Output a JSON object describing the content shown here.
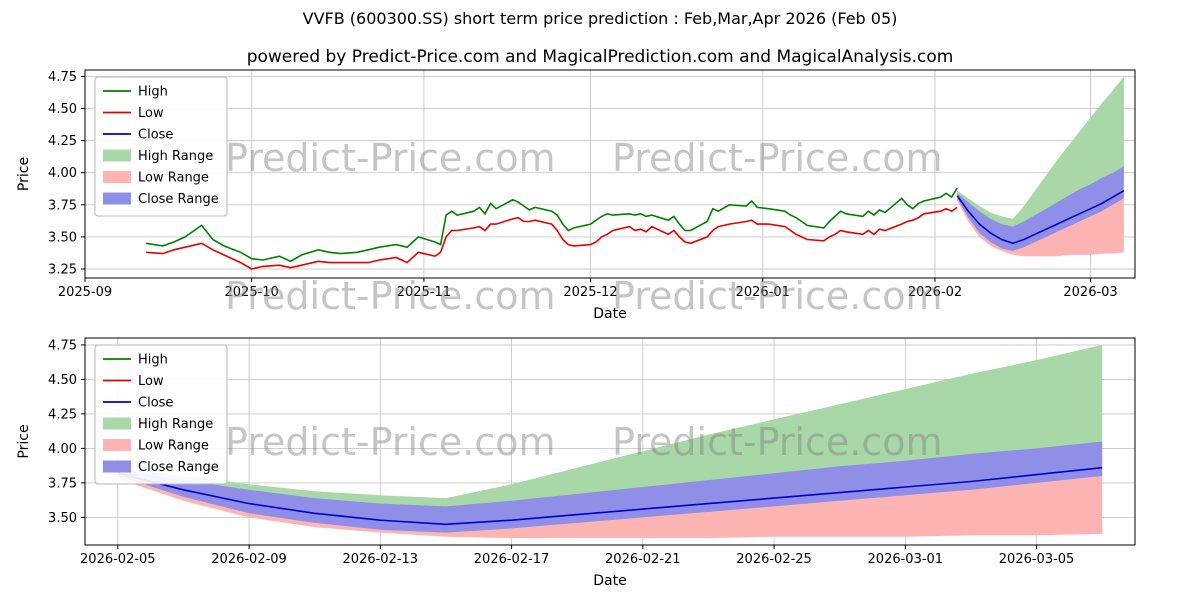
{
  "title": "VVFB (600300.SS) short term price prediction : Feb,Mar,Apr 2026 (Feb 05)",
  "subtitle": "powered by Predict-Price.com and MagicalPrediction.com and MagicalAnalysis.com",
  "watermark": "Predict-Price.com",
  "colors": {
    "high": "#008000",
    "low": "#e60000",
    "close": "#0000cd",
    "high_range": "#a8d8a8",
    "low_range": "#ffb4b4",
    "close_range": "#8f8fe8",
    "grid": "#c9c9c9",
    "spine": "#000000",
    "watermark": "#808080"
  },
  "chart_data": [
    {
      "type": "line",
      "name": "history-with-prediction",
      "xlabel": "Date",
      "ylabel": "Price",
      "xlim": [
        "2025-09-01",
        "2026-03-09"
      ],
      "ylim": [
        3.18,
        4.8
      ],
      "grid": true,
      "legend_position": "upper left",
      "xticks": [
        {
          "value": "2025-09-01",
          "label": "2025-09"
        },
        {
          "value": "2025-10-01",
          "label": "2025-10"
        },
        {
          "value": "2025-11-01",
          "label": "2025-11"
        },
        {
          "value": "2025-12-01",
          "label": "2025-12"
        },
        {
          "value": "2026-01-01",
          "label": "2026-01"
        },
        {
          "value": "2026-02-01",
          "label": "2026-02"
        },
        {
          "value": "2026-03-01",
          "label": "2026-03"
        }
      ],
      "yticks": [
        3.25,
        3.5,
        3.75,
        4.0,
        4.25,
        4.5,
        4.75
      ],
      "ytick_labels": [
        "3.25",
        "3.50",
        "3.75",
        "4.00",
        "4.25",
        "4.50",
        "4.75"
      ],
      "legend": [
        {
          "label": "High",
          "swatch": "line",
          "color_key": "high"
        },
        {
          "label": "Low",
          "swatch": "line",
          "color_key": "low"
        },
        {
          "label": "Close",
          "swatch": "line",
          "color_key": "close"
        },
        {
          "label": "High Range",
          "swatch": "patch",
          "color_key": "high_range"
        },
        {
          "label": "Low Range",
          "swatch": "patch",
          "color_key": "low_range"
        },
        {
          "label": "Close Range",
          "swatch": "patch",
          "color_key": "close_range"
        }
      ],
      "series": {
        "history": {
          "dates": [
            "2025-09-12",
            "2025-09-15",
            "2025-09-17",
            "2025-09-19",
            "2025-09-22",
            "2025-09-24",
            "2025-09-26",
            "2025-09-29",
            "2025-10-01",
            "2025-10-03",
            "2025-10-06",
            "2025-10-08",
            "2025-10-10",
            "2025-10-13",
            "2025-10-15",
            "2025-10-17",
            "2025-10-20",
            "2025-10-22",
            "2025-10-24",
            "2025-10-27",
            "2025-10-29",
            "2025-10-31",
            "2025-11-03",
            "2025-11-04",
            "2025-11-05",
            "2025-11-06",
            "2025-11-07",
            "2025-11-10",
            "2025-11-11",
            "2025-11-12",
            "2025-11-13",
            "2025-11-14",
            "2025-11-17",
            "2025-11-18",
            "2025-11-19",
            "2025-11-20",
            "2025-11-21",
            "2025-11-24",
            "2025-11-25",
            "2025-11-26",
            "2025-11-27",
            "2025-11-28",
            "2025-12-01",
            "2025-12-02",
            "2025-12-03",
            "2025-12-04",
            "2025-12-05",
            "2025-12-08",
            "2025-12-09",
            "2025-12-10",
            "2025-12-11",
            "2025-12-12",
            "2025-12-15",
            "2025-12-16",
            "2025-12-17",
            "2025-12-18",
            "2025-12-19",
            "2025-12-22",
            "2025-12-23",
            "2025-12-24",
            "2025-12-26",
            "2025-12-29",
            "2025-12-30",
            "2025-12-31",
            "2026-01-02",
            "2026-01-05",
            "2026-01-06",
            "2026-01-07",
            "2026-01-08",
            "2026-01-09",
            "2026-01-12",
            "2026-01-13",
            "2026-01-14",
            "2026-01-15",
            "2026-01-16",
            "2026-01-19",
            "2026-01-20",
            "2026-01-21",
            "2026-01-22",
            "2026-01-23",
            "2026-01-26",
            "2026-01-27",
            "2026-01-28",
            "2026-01-29",
            "2026-01-30",
            "2026-02-02",
            "2026-02-03",
            "2026-02-04",
            "2026-02-05"
          ],
          "high": [
            3.45,
            3.43,
            3.46,
            3.5,
            3.59,
            3.48,
            3.43,
            3.38,
            3.33,
            3.32,
            3.35,
            3.31,
            3.36,
            3.4,
            3.38,
            3.37,
            3.38,
            3.4,
            3.42,
            3.44,
            3.42,
            3.5,
            3.46,
            3.44,
            3.67,
            3.7,
            3.67,
            3.7,
            3.73,
            3.68,
            3.76,
            3.72,
            3.79,
            3.77,
            3.74,
            3.71,
            3.73,
            3.7,
            3.67,
            3.6,
            3.55,
            3.57,
            3.6,
            3.63,
            3.66,
            3.68,
            3.67,
            3.68,
            3.67,
            3.68,
            3.66,
            3.67,
            3.63,
            3.66,
            3.6,
            3.55,
            3.55,
            3.62,
            3.72,
            3.7,
            3.75,
            3.74,
            3.78,
            3.73,
            3.72,
            3.7,
            3.67,
            3.65,
            3.62,
            3.59,
            3.57,
            3.62,
            3.66,
            3.7,
            3.68,
            3.66,
            3.7,
            3.67,
            3.71,
            3.69,
            3.8,
            3.75,
            3.72,
            3.76,
            3.78,
            3.81,
            3.84,
            3.81,
            3.88
          ],
          "low": [
            3.38,
            3.37,
            3.4,
            3.42,
            3.45,
            3.4,
            3.36,
            3.3,
            3.25,
            3.27,
            3.28,
            3.26,
            3.28,
            3.31,
            3.3,
            3.3,
            3.3,
            3.3,
            3.32,
            3.34,
            3.3,
            3.38,
            3.35,
            3.38,
            3.5,
            3.55,
            3.55,
            3.57,
            3.58,
            3.55,
            3.6,
            3.6,
            3.64,
            3.65,
            3.62,
            3.62,
            3.63,
            3.6,
            3.55,
            3.48,
            3.44,
            3.43,
            3.44,
            3.46,
            3.5,
            3.52,
            3.55,
            3.58,
            3.55,
            3.56,
            3.54,
            3.58,
            3.52,
            3.55,
            3.5,
            3.46,
            3.45,
            3.5,
            3.55,
            3.58,
            3.6,
            3.62,
            3.63,
            3.6,
            3.6,
            3.58,
            3.55,
            3.52,
            3.5,
            3.48,
            3.47,
            3.5,
            3.52,
            3.55,
            3.54,
            3.52,
            3.55,
            3.52,
            3.56,
            3.55,
            3.6,
            3.62,
            3.63,
            3.65,
            3.68,
            3.7,
            3.72,
            3.7,
            3.73
          ]
        },
        "prediction": {
          "dates": [
            "2026-02-05",
            "2026-02-07",
            "2026-02-09",
            "2026-02-11",
            "2026-02-13",
            "2026-02-15",
            "2026-02-17",
            "2026-02-19",
            "2026-02-21",
            "2026-02-23",
            "2026-02-25",
            "2026-02-27",
            "2026-03-01",
            "2026-03-03",
            "2026-03-05",
            "2026-03-07"
          ],
          "close": [
            3.82,
            3.7,
            3.6,
            3.53,
            3.48,
            3.45,
            3.48,
            3.52,
            3.56,
            3.6,
            3.64,
            3.68,
            3.72,
            3.76,
            3.81,
            3.86
          ],
          "high_max": [
            3.86,
            3.8,
            3.74,
            3.69,
            3.66,
            3.64,
            3.74,
            3.86,
            3.98,
            4.1,
            4.21,
            4.32,
            4.43,
            4.54,
            4.64,
            4.75
          ],
          "high_min": [
            3.84,
            3.74,
            3.65,
            3.58,
            3.53,
            3.51,
            3.55,
            3.6,
            3.64,
            3.68,
            3.73,
            3.78,
            3.82,
            3.87,
            3.91,
            3.96
          ],
          "low_max": [
            3.8,
            3.67,
            3.56,
            3.49,
            3.44,
            3.42,
            3.45,
            3.49,
            3.53,
            3.57,
            3.61,
            3.65,
            3.69,
            3.73,
            3.78,
            3.82
          ],
          "low_min": [
            3.78,
            3.62,
            3.5,
            3.43,
            3.39,
            3.36,
            3.35,
            3.35,
            3.35,
            3.35,
            3.36,
            3.36,
            3.36,
            3.37,
            3.37,
            3.38
          ],
          "close_max": [
            3.84,
            3.77,
            3.7,
            3.64,
            3.6,
            3.58,
            3.62,
            3.67,
            3.72,
            3.77,
            3.82,
            3.87,
            3.91,
            3.96,
            4.0,
            4.05
          ],
          "close_min": [
            3.8,
            3.65,
            3.53,
            3.46,
            3.41,
            3.39,
            3.42,
            3.46,
            3.5,
            3.54,
            3.58,
            3.62,
            3.66,
            3.7,
            3.75,
            3.8
          ]
        }
      }
    },
    {
      "type": "line",
      "name": "prediction-zoom",
      "xlabel": "Date",
      "ylabel": "Price",
      "xlim": [
        "2026-02-04",
        "2026-03-08"
      ],
      "ylim": [
        3.3,
        4.8
      ],
      "grid": true,
      "legend_position": "upper left",
      "xticks": [
        {
          "value": "2026-02-05",
          "label": "2026-02-05"
        },
        {
          "value": "2026-02-09",
          "label": "2026-02-09"
        },
        {
          "value": "2026-02-13",
          "label": "2026-02-13"
        },
        {
          "value": "2026-02-17",
          "label": "2026-02-17"
        },
        {
          "value": "2026-02-21",
          "label": "2026-02-21"
        },
        {
          "value": "2026-02-25",
          "label": "2026-02-25"
        },
        {
          "value": "2026-03-01",
          "label": "2026-03-01"
        },
        {
          "value": "2026-03-05",
          "label": "2026-03-05"
        }
      ],
      "yticks": [
        3.5,
        3.75,
        4.0,
        4.25,
        4.5,
        4.75
      ],
      "ytick_labels": [
        "3.50",
        "3.75",
        "4.00",
        "4.25",
        "4.50",
        "4.75"
      ],
      "legend": [
        {
          "label": "High",
          "swatch": "line",
          "color_key": "high"
        },
        {
          "label": "Low",
          "swatch": "line",
          "color_key": "low"
        },
        {
          "label": "Close",
          "swatch": "line",
          "color_key": "close"
        },
        {
          "label": "High Range",
          "swatch": "patch",
          "color_key": "high_range"
        },
        {
          "label": "Low Range",
          "swatch": "patch",
          "color_key": "low_range"
        },
        {
          "label": "Close Range",
          "swatch": "patch",
          "color_key": "close_range"
        }
      ],
      "series": {
        "prediction": {
          "dates": [
            "2026-02-05",
            "2026-02-07",
            "2026-02-09",
            "2026-02-11",
            "2026-02-13",
            "2026-02-15",
            "2026-02-17",
            "2026-02-19",
            "2026-02-21",
            "2026-02-23",
            "2026-02-25",
            "2026-02-27",
            "2026-03-01",
            "2026-03-03",
            "2026-03-05",
            "2026-03-07"
          ],
          "close": [
            3.82,
            3.7,
            3.6,
            3.53,
            3.48,
            3.45,
            3.48,
            3.52,
            3.56,
            3.6,
            3.64,
            3.68,
            3.72,
            3.76,
            3.81,
            3.86
          ],
          "high_max": [
            3.86,
            3.8,
            3.74,
            3.69,
            3.66,
            3.64,
            3.74,
            3.86,
            3.98,
            4.1,
            4.21,
            4.32,
            4.43,
            4.54,
            4.64,
            4.75
          ],
          "high_min": [
            3.84,
            3.74,
            3.65,
            3.58,
            3.53,
            3.51,
            3.55,
            3.6,
            3.64,
            3.68,
            3.73,
            3.78,
            3.82,
            3.87,
            3.91,
            3.96
          ],
          "low_max": [
            3.8,
            3.67,
            3.56,
            3.49,
            3.44,
            3.42,
            3.45,
            3.49,
            3.53,
            3.57,
            3.61,
            3.65,
            3.69,
            3.73,
            3.78,
            3.82
          ],
          "low_min": [
            3.78,
            3.62,
            3.5,
            3.43,
            3.39,
            3.36,
            3.35,
            3.35,
            3.35,
            3.35,
            3.36,
            3.36,
            3.36,
            3.37,
            3.37,
            3.38
          ],
          "close_max": [
            3.84,
            3.77,
            3.7,
            3.64,
            3.6,
            3.58,
            3.62,
            3.67,
            3.72,
            3.77,
            3.82,
            3.87,
            3.91,
            3.96,
            4.0,
            4.05
          ],
          "close_min": [
            3.8,
            3.65,
            3.53,
            3.46,
            3.41,
            3.39,
            3.42,
            3.46,
            3.5,
            3.54,
            3.58,
            3.62,
            3.66,
            3.7,
            3.75,
            3.8
          ]
        }
      }
    }
  ]
}
